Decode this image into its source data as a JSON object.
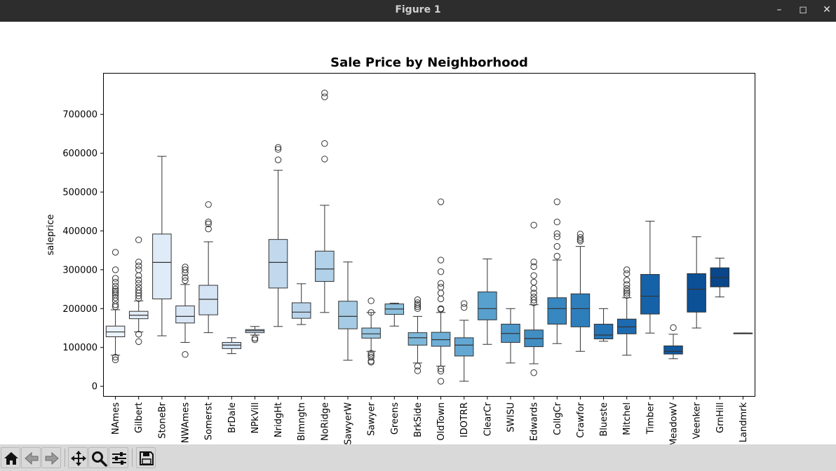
{
  "window": {
    "title": "Figure 1"
  },
  "toolbar": {
    "buttons": [
      "home-icon",
      "back-icon",
      "forward-icon",
      "pan-icon",
      "zoom-icon",
      "configure-icon",
      "save-icon"
    ]
  },
  "chart_data": {
    "type": "box",
    "title": "Sale Price by Neighborhood",
    "xlabel": "",
    "ylabel": "saleprice",
    "ylim": [
      -25000,
      805000
    ],
    "yticks": [
      0,
      100000,
      200000,
      300000,
      400000,
      500000,
      600000,
      700000
    ],
    "ytick_labels": [
      "0",
      "100000",
      "200000",
      "300000",
      "400000",
      "500000",
      "600000",
      "700000"
    ],
    "grid": false,
    "categories": [
      "NAmes",
      "Gilbert",
      "StoneBr",
      "NWAmes",
      "Somerst",
      "BrDale",
      "NPkVill",
      "NridgHt",
      "Blmngtn",
      "NoRidge",
      "SawyerW",
      "Sawyer",
      "Greens",
      "BrkSide",
      "OldTown",
      "IDOTRR",
      "ClearCr",
      "SWISU",
      "Edwards",
      "CollgCr",
      "Crawfor",
      "Blueste",
      "Mitchel",
      "Timber",
      "MeadowV",
      "Veenker",
      "GrnHill",
      "Landmrk"
    ],
    "tick_labels": [
      "NAmes",
      "Gilbert",
      "StoneBr",
      "NWAmes",
      "Somerst",
      "BrDale",
      "NPkVill",
      "NridgHt",
      "Blmngtn",
      "NoRidge",
      "SawyerW",
      "Sawyer",
      "Greens",
      "BrkSide",
      "OldTown",
      "IDOTRR",
      "ClearCr",
      "SWISU",
      "Edwards",
      "CollgCr",
      "Crawfor",
      "Blueste",
      "Mitchel",
      "Timber",
      "MeadowV",
      "Veenker",
      "GrnHill",
      "Landmrk"
    ],
    "boxes": [
      {
        "whislo": 80000,
        "q1": 127500,
        "med": 140000,
        "q3": 155000,
        "whishi": 197000,
        "fliers": [
          345000,
          300000,
          278000,
          268000,
          258000,
          250000,
          245000,
          240000,
          235000,
          228000,
          220000,
          210000,
          205000,
          75000,
          68000
        ]
      },
      {
        "whislo": 140000,
        "q1": 174000,
        "med": 183000,
        "q3": 193000,
        "whishi": 220000,
        "fliers": [
          377000,
          320000,
          310000,
          300000,
          285000,
          274000,
          265000,
          255000,
          247000,
          240000,
          233000,
          226000,
          134000,
          115000
        ]
      },
      {
        "whislo": 130000,
        "q1": 225000,
        "med": 319000,
        "q3": 392000,
        "whishi": 592000,
        "fliers": []
      },
      {
        "whislo": 113000,
        "q1": 163000,
        "med": 180000,
        "q3": 207000,
        "whishi": 262000,
        "fliers": [
          307000,
          300000,
          292000,
          280000,
          272000,
          82000
        ]
      },
      {
        "whislo": 138000,
        "q1": 184000,
        "med": 224000,
        "q3": 260000,
        "whishi": 372000,
        "fliers": [
          468000,
          423000,
          418000,
          405000
        ]
      },
      {
        "whislo": 84000,
        "q1": 97000,
        "med": 106000,
        "q3": 113000,
        "whishi": 125000,
        "fliers": []
      },
      {
        "whislo": 132000,
        "q1": 138000,
        "med": 143000,
        "q3": 146000,
        "whishi": 154000,
        "fliers": [
          124000,
          120000
        ]
      },
      {
        "whislo": 154000,
        "q1": 253000,
        "med": 319000,
        "q3": 378000,
        "whishi": 556000,
        "fliers": [
          615000,
          610000,
          583000
        ]
      },
      {
        "whislo": 159000,
        "q1": 175000,
        "med": 191000,
        "q3": 215000,
        "whishi": 264000,
        "fliers": []
      },
      {
        "whislo": 190000,
        "q1": 270000,
        "med": 302000,
        "q3": 348000,
        "whishi": 466000,
        "fliers": [
          755000,
          745000,
          625000,
          585000
        ]
      },
      {
        "whislo": 67000,
        "q1": 148000,
        "med": 180000,
        "q3": 219000,
        "whishi": 320000,
        "fliers": []
      },
      {
        "whislo": 90000,
        "q1": 124000,
        "med": 135000,
        "q3": 150000,
        "whishi": 190000,
        "fliers": [
          220000,
          190000,
          85000,
          80000,
          75000,
          65000,
          62000
        ]
      },
      {
        "whislo": 155000,
        "q1": 185000,
        "med": 199000,
        "q3": 212000,
        "whishi": 214000,
        "fliers": []
      },
      {
        "whislo": 60000,
        "q1": 106000,
        "med": 125000,
        "q3": 138000,
        "whishi": 180000,
        "fliers": [
          223000,
          215000,
          210000,
          205000,
          200000,
          52000,
          40000
        ]
      },
      {
        "whislo": 52000,
        "q1": 103000,
        "med": 120000,
        "q3": 139000,
        "whishi": 190000,
        "fliers": [
          475000,
          325000,
          295000,
          265000,
          255000,
          240000,
          225000,
          200000,
          198000,
          45000,
          39000,
          13000
        ]
      },
      {
        "whislo": 13000,
        "q1": 78000,
        "med": 106000,
        "q3": 125000,
        "whishi": 170000,
        "fliers": [
          213000,
          203000
        ]
      },
      {
        "whislo": 108000,
        "q1": 171000,
        "med": 200000,
        "q3": 243000,
        "whishi": 328000,
        "fliers": []
      },
      {
        "whislo": 60000,
        "q1": 113000,
        "med": 136000,
        "q3": 160000,
        "whishi": 200000,
        "fliers": []
      },
      {
        "whislo": 58000,
        "q1": 102000,
        "med": 123000,
        "q3": 145000,
        "whishi": 210000,
        "fliers": [
          415000,
          320000,
          308000,
          285000,
          268000,
          252000,
          240000,
          230000,
          222000,
          215000,
          35000
        ]
      },
      {
        "whislo": 110000,
        "q1": 160000,
        "med": 200000,
        "q3": 228000,
        "whishi": 325000,
        "fliers": [
          475000,
          423000,
          393000,
          385000,
          360000,
          335000
        ]
      },
      {
        "whislo": 90000,
        "q1": 153000,
        "med": 200000,
        "q3": 238000,
        "whishi": 360000,
        "fliers": [
          392000,
          383000,
          378000,
          374000
        ]
      },
      {
        "whislo": 116000,
        "q1": 122000,
        "med": 132000,
        "q3": 160000,
        "whishi": 200000,
        "fliers": []
      },
      {
        "whislo": 80000,
        "q1": 135000,
        "med": 153000,
        "q3": 173000,
        "whishi": 228000,
        "fliers": [
          300000,
          290000,
          273000,
          262000,
          252000,
          245000,
          240000,
          234000
        ]
      },
      {
        "whislo": 137000,
        "q1": 186000,
        "med": 232000,
        "q3": 288000,
        "whishi": 425000,
        "fliers": []
      },
      {
        "whislo": 71000,
        "q1": 83000,
        "med": 90000,
        "q3": 104000,
        "whishi": 134000,
        "fliers": [
          151000
        ]
      },
      {
        "whislo": 150000,
        "q1": 191000,
        "med": 250000,
        "q3": 290000,
        "whishi": 385000,
        "fliers": []
      },
      {
        "whislo": 230000,
        "q1": 256000,
        "med": 280000,
        "q3": 305000,
        "whishi": 330000,
        "fliers": []
      },
      {
        "whislo": 137000,
        "q1": 137000,
        "med": 137000,
        "q3": 137000,
        "whishi": 137000,
        "fliers": []
      }
    ],
    "box_colors": [
      "#eaf2fb",
      "#e4eef9",
      "#dfebf7",
      "#d9e7f5",
      "#d4e4f4",
      "#cee0f2",
      "#c8dcf0",
      "#c1d9ed",
      "#b9d4ea",
      "#b0d1e8",
      "#a5cce4",
      "#99c6e1",
      "#8cc0dd",
      "#7db8da",
      "#6fafd7",
      "#63a8d3",
      "#58a0ce",
      "#4c97c9",
      "#418ec3",
      "#3787c0",
      "#2e7ebc",
      "#2474b6",
      "#1c6aaf",
      "#1662a8",
      "#10599f",
      "#0c5096",
      "#09478a",
      "#083e7e"
    ]
  }
}
